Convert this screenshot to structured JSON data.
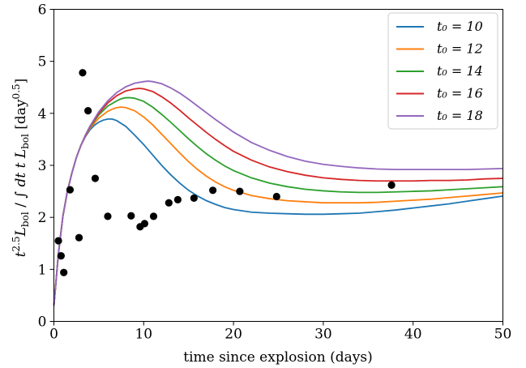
{
  "chart_data": {
    "type": "line",
    "xlabel": "time since explosion (days)",
    "ylabel": "t^2.5 L_bol / ∫ dt t L_bol [day^0.5]",
    "ylabel_parts": {
      "t": "t",
      "t_exp": "2.5",
      "L1": "L",
      "L1_sub": "bol",
      "slash": " / ",
      "integral": "∫ ",
      "dtt": "dt t ",
      "L2": "L",
      "L2_sub": "bol",
      "unit_open": " [day",
      "unit_exp": "0.5",
      "unit_close": "]"
    },
    "xlim": [
      0,
      50
    ],
    "ylim": [
      0,
      6
    ],
    "xticks": [
      0,
      10,
      20,
      30,
      40,
      50
    ],
    "yticks": [
      0,
      1,
      2,
      3,
      4,
      5,
      6
    ],
    "legend_position": "top-right",
    "grid": false,
    "series": [
      {
        "name": "t₀ = 10",
        "color": "#1f77b4",
        "points": [
          [
            0,
            0.3
          ],
          [
            0.5,
            1.3
          ],
          [
            1,
            2.02
          ],
          [
            1.5,
            2.5
          ],
          [
            2,
            2.85
          ],
          [
            2.5,
            3.15
          ],
          [
            3,
            3.38
          ],
          [
            3.5,
            3.55
          ],
          [
            4,
            3.68
          ],
          [
            4.5,
            3.77
          ],
          [
            5,
            3.83
          ],
          [
            5.5,
            3.87
          ],
          [
            6,
            3.89
          ],
          [
            6.5,
            3.89
          ],
          [
            7,
            3.86
          ],
          [
            8,
            3.75
          ],
          [
            9,
            3.58
          ],
          [
            10,
            3.4
          ],
          [
            11,
            3.2
          ],
          [
            12,
            3.0
          ],
          [
            13,
            2.82
          ],
          [
            14,
            2.66
          ],
          [
            15,
            2.52
          ],
          [
            16,
            2.41
          ],
          [
            17,
            2.32
          ],
          [
            18,
            2.25
          ],
          [
            19,
            2.19
          ],
          [
            20,
            2.15
          ],
          [
            22,
            2.1
          ],
          [
            24,
            2.08
          ],
          [
            26,
            2.07
          ],
          [
            28,
            2.06
          ],
          [
            30,
            2.06
          ],
          [
            32,
            2.07
          ],
          [
            34,
            2.08
          ],
          [
            36,
            2.11
          ],
          [
            38,
            2.14
          ],
          [
            40,
            2.18
          ],
          [
            42,
            2.22
          ],
          [
            44,
            2.26
          ],
          [
            46,
            2.31
          ],
          [
            48,
            2.36
          ],
          [
            50,
            2.41
          ]
        ]
      },
      {
        "name": "t₀ = 12",
        "color": "#ff7f0e",
        "points": [
          [
            0,
            0.3
          ],
          [
            0.5,
            1.3
          ],
          [
            1,
            2.02
          ],
          [
            1.5,
            2.5
          ],
          [
            2,
            2.85
          ],
          [
            2.5,
            3.15
          ],
          [
            3,
            3.38
          ],
          [
            3.5,
            3.56
          ],
          [
            4,
            3.71
          ],
          [
            5,
            3.91
          ],
          [
            6,
            4.04
          ],
          [
            6.5,
            4.08
          ],
          [
            7,
            4.11
          ],
          [
            7.5,
            4.12
          ],
          [
            8,
            4.11
          ],
          [
            9,
            4.05
          ],
          [
            10,
            3.93
          ],
          [
            11,
            3.78
          ],
          [
            12,
            3.6
          ],
          [
            13,
            3.42
          ],
          [
            14,
            3.24
          ],
          [
            15,
            3.07
          ],
          [
            16,
            2.92
          ],
          [
            17,
            2.79
          ],
          [
            18,
            2.68
          ],
          [
            19,
            2.59
          ],
          [
            20,
            2.52
          ],
          [
            22,
            2.42
          ],
          [
            24,
            2.36
          ],
          [
            26,
            2.32
          ],
          [
            28,
            2.3
          ],
          [
            30,
            2.28
          ],
          [
            32,
            2.28
          ],
          [
            34,
            2.28
          ],
          [
            36,
            2.29
          ],
          [
            38,
            2.31
          ],
          [
            40,
            2.33
          ],
          [
            42,
            2.35
          ],
          [
            44,
            2.38
          ],
          [
            46,
            2.41
          ],
          [
            48,
            2.44
          ],
          [
            50,
            2.47
          ]
        ]
      },
      {
        "name": "t₀ = 14",
        "color": "#2ca02c",
        "points": [
          [
            0,
            0.3
          ],
          [
            0.5,
            1.3
          ],
          [
            1,
            2.02
          ],
          [
            1.5,
            2.5
          ],
          [
            2,
            2.85
          ],
          [
            2.5,
            3.15
          ],
          [
            3,
            3.38
          ],
          [
            3.5,
            3.57
          ],
          [
            4,
            3.73
          ],
          [
            5,
            3.97
          ],
          [
            6,
            4.14
          ],
          [
            7,
            4.24
          ],
          [
            7.5,
            4.28
          ],
          [
            8,
            4.3
          ],
          [
            8.5,
            4.3
          ],
          [
            9,
            4.29
          ],
          [
            10,
            4.23
          ],
          [
            11,
            4.12
          ],
          [
            12,
            3.98
          ],
          [
            13,
            3.83
          ],
          [
            14,
            3.67
          ],
          [
            15,
            3.51
          ],
          [
            16,
            3.36
          ],
          [
            17,
            3.22
          ],
          [
            18,
            3.1
          ],
          [
            19,
            2.99
          ],
          [
            20,
            2.9
          ],
          [
            22,
            2.76
          ],
          [
            24,
            2.66
          ],
          [
            26,
            2.59
          ],
          [
            28,
            2.54
          ],
          [
            30,
            2.51
          ],
          [
            32,
            2.49
          ],
          [
            34,
            2.48
          ],
          [
            36,
            2.48
          ],
          [
            38,
            2.49
          ],
          [
            40,
            2.5
          ],
          [
            42,
            2.51
          ],
          [
            44,
            2.53
          ],
          [
            46,
            2.55
          ],
          [
            48,
            2.57
          ],
          [
            50,
            2.59
          ]
        ]
      },
      {
        "name": "t₀ = 16",
        "color": "#d62728",
        "points": [
          [
            0,
            0.3
          ],
          [
            0.5,
            1.3
          ],
          [
            1,
            2.02
          ],
          [
            1.5,
            2.5
          ],
          [
            2,
            2.85
          ],
          [
            2.5,
            3.15
          ],
          [
            3,
            3.38
          ],
          [
            3.5,
            3.57
          ],
          [
            4,
            3.74
          ],
          [
            5,
            4.0
          ],
          [
            6,
            4.2
          ],
          [
            7,
            4.34
          ],
          [
            8,
            4.43
          ],
          [
            9,
            4.47
          ],
          [
            9.5,
            4.48
          ],
          [
            10,
            4.47
          ],
          [
            11,
            4.42
          ],
          [
            12,
            4.32
          ],
          [
            13,
            4.2
          ],
          [
            14,
            4.06
          ],
          [
            15,
            3.91
          ],
          [
            16,
            3.77
          ],
          [
            17,
            3.63
          ],
          [
            18,
            3.5
          ],
          [
            19,
            3.38
          ],
          [
            20,
            3.27
          ],
          [
            22,
            3.1
          ],
          [
            24,
            2.97
          ],
          [
            26,
            2.88
          ],
          [
            28,
            2.81
          ],
          [
            30,
            2.76
          ],
          [
            32,
            2.73
          ],
          [
            34,
            2.71
          ],
          [
            36,
            2.7
          ],
          [
            38,
            2.7
          ],
          [
            40,
            2.7
          ],
          [
            42,
            2.71
          ],
          [
            44,
            2.71
          ],
          [
            46,
            2.72
          ],
          [
            48,
            2.74
          ],
          [
            50,
            2.75
          ]
        ]
      },
      {
        "name": "t₀ = 18",
        "color": "#9467bd",
        "points": [
          [
            0,
            0.3
          ],
          [
            0.5,
            1.3
          ],
          [
            1,
            2.02
          ],
          [
            1.5,
            2.5
          ],
          [
            2,
            2.85
          ],
          [
            2.5,
            3.15
          ],
          [
            3,
            3.38
          ],
          [
            3.5,
            3.58
          ],
          [
            4,
            3.75
          ],
          [
            5,
            4.03
          ],
          [
            6,
            4.24
          ],
          [
            7,
            4.4
          ],
          [
            8,
            4.51
          ],
          [
            9,
            4.58
          ],
          [
            10,
            4.61
          ],
          [
            10.5,
            4.62
          ],
          [
            11,
            4.61
          ],
          [
            12,
            4.57
          ],
          [
            13,
            4.49
          ],
          [
            14,
            4.39
          ],
          [
            15,
            4.27
          ],
          [
            16,
            4.14
          ],
          [
            17,
            4.01
          ],
          [
            18,
            3.88
          ],
          [
            19,
            3.76
          ],
          [
            20,
            3.64
          ],
          [
            22,
            3.44
          ],
          [
            24,
            3.29
          ],
          [
            26,
            3.17
          ],
          [
            28,
            3.08
          ],
          [
            30,
            3.02
          ],
          [
            32,
            2.98
          ],
          [
            34,
            2.95
          ],
          [
            36,
            2.93
          ],
          [
            38,
            2.92
          ],
          [
            40,
            2.92
          ],
          [
            42,
            2.92
          ],
          [
            44,
            2.92
          ],
          [
            46,
            2.92
          ],
          [
            48,
            2.93
          ],
          [
            50,
            2.94
          ]
        ]
      }
    ],
    "observations": {
      "color": "#000000",
      "points": [
        [
          0.5,
          1.55
        ],
        [
          0.8,
          1.26
        ],
        [
          1.1,
          0.94
        ],
        [
          1.8,
          2.53
        ],
        [
          2.8,
          1.61
        ],
        [
          3.2,
          4.78
        ],
        [
          3.8,
          4.05
        ],
        [
          4.6,
          2.75
        ],
        [
          6.0,
          2.02
        ],
        [
          8.6,
          2.03
        ],
        [
          9.6,
          1.82
        ],
        [
          10.1,
          1.88
        ],
        [
          11.1,
          2.02
        ],
        [
          12.8,
          2.28
        ],
        [
          13.8,
          2.34
        ],
        [
          15.6,
          2.37
        ],
        [
          17.7,
          2.52
        ],
        [
          20.7,
          2.5
        ],
        [
          24.8,
          2.4
        ],
        [
          37.6,
          2.62
        ]
      ]
    }
  }
}
